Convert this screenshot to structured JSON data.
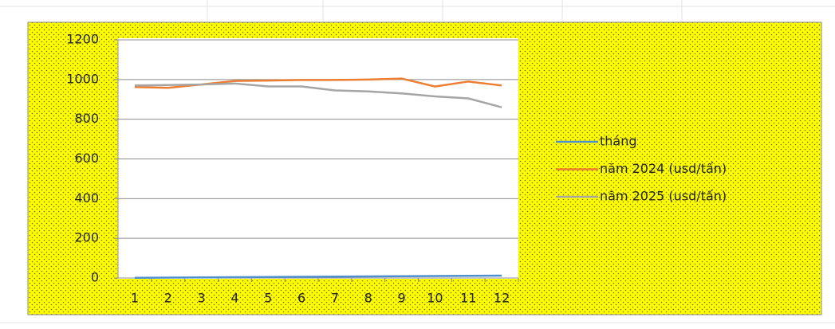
{
  "chart_data": {
    "type": "line",
    "categories": [
      1,
      2,
      3,
      4,
      5,
      6,
      7,
      8,
      9,
      10,
      11,
      12
    ],
    "series": [
      {
        "name": "tháng",
        "color": "#4f8fd0",
        "values": [
          1,
          2,
          3,
          4,
          5,
          6,
          7,
          8,
          9,
          10,
          11,
          12
        ]
      },
      {
        "name": "năm 2024 (usd/tấn)",
        "color": "#ed7d31",
        "values": [
          962,
          958,
          975,
          993,
          995,
          998,
          998,
          1000,
          1005,
          965,
          990,
          970
        ]
      },
      {
        "name": "năm 2025 (usd/tấn)",
        "color": "#a5a5a5",
        "values": [
          970,
          972,
          975,
          980,
          965,
          965,
          945,
          940,
          930,
          915,
          905,
          860
        ]
      }
    ],
    "ylim": [
      0,
      1200
    ],
    "yticks": [
      0,
      200,
      400,
      600,
      800,
      1000,
      1200
    ],
    "grid": true,
    "legend": "right"
  }
}
